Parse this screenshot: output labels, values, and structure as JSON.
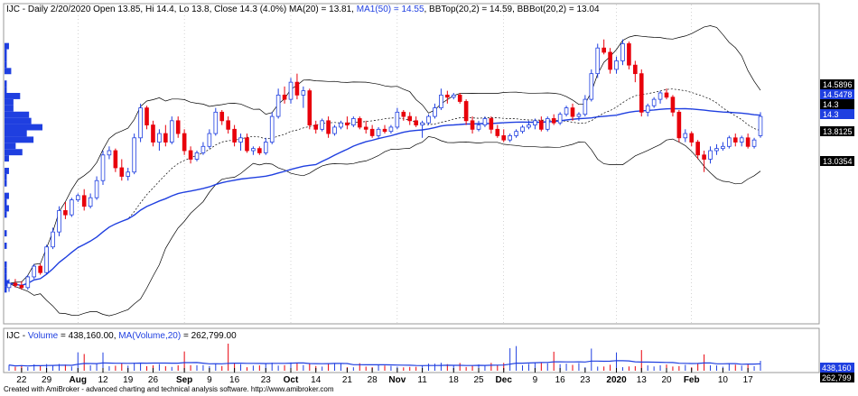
{
  "chart_data": {
    "type": "candlestick",
    "symbol": "IJC",
    "header": {
      "prefix": "IJC - Daily 2/20/2020 Open 13.85, Hi 14.4, Lo 13.8, Close 14.3 (4.0%) MA(20) = 13.81, ",
      "ma50": "MA1(50) = 14.55",
      "bb": ", BBTop(20,2) = 14.59, BBBot(20,2) = 13.04"
    },
    "last_bar": {
      "date": "2/20/2020",
      "open": 13.85,
      "high": 14.4,
      "low": 13.8,
      "close": 14.3,
      "change_pct": 4.0
    },
    "indicators": {
      "ma20": 13.81,
      "ma50": 14.55,
      "bb_top": 14.59,
      "bb_bot": 13.04
    },
    "y_axis_labels": [
      {
        "value": 14.5896,
        "text": "14.5896",
        "bg": "#000000",
        "color": "#ffffff"
      },
      {
        "value": 14.5478,
        "text": "14.5478",
        "bg": "#1f3fe0",
        "color": "#ffffff"
      },
      {
        "value": 14.3,
        "text": "14.3",
        "bg": "#000000",
        "color": "#ffffff"
      },
      {
        "value": 14.3,
        "text": "14.3",
        "bg": "#1f3fe0",
        "color": "#ffffff"
      },
      {
        "value": 13.8125,
        "text": "13.8125",
        "bg": "#000000",
        "color": "#ffffff"
      },
      {
        "value": 13.0354,
        "text": "13.0354",
        "bg": "#000000",
        "color": "#ffffff"
      }
    ],
    "x_ticks": [
      {
        "label": "22",
        "bold": false
      },
      {
        "label": "29",
        "bold": false
      },
      {
        "label": "Aug",
        "bold": true
      },
      {
        "label": "12",
        "bold": false
      },
      {
        "label": "19",
        "bold": false
      },
      {
        "label": "26",
        "bold": false
      },
      {
        "label": "Sep",
        "bold": true
      },
      {
        "label": "9",
        "bold": false
      },
      {
        "label": "16",
        "bold": false
      },
      {
        "label": "23",
        "bold": false
      },
      {
        "label": "Oct",
        "bold": true
      },
      {
        "label": "14",
        "bold": false
      },
      {
        "label": "21",
        "bold": false
      },
      {
        "label": "28",
        "bold": false
      },
      {
        "label": "Nov",
        "bold": true
      },
      {
        "label": "11",
        "bold": false
      },
      {
        "label": "18",
        "bold": false
      },
      {
        "label": "25",
        "bold": false
      },
      {
        "label": "Dec",
        "bold": true
      },
      {
        "label": "9",
        "bold": false
      },
      {
        "label": "16",
        "bold": false
      },
      {
        "label": "23",
        "bold": false
      },
      {
        "label": "2020",
        "bold": true
      },
      {
        "label": "13",
        "bold": false
      },
      {
        "label": "20",
        "bold": false
      },
      {
        "label": "Feb",
        "bold": true
      },
      {
        "label": "10",
        "bold": false
      },
      {
        "label": "17",
        "bold": false
      }
    ],
    "price_series": [
      {
        "o": 10.3,
        "h": 10.5,
        "l": 10.2,
        "c": 10.4
      },
      {
        "o": 10.4,
        "h": 10.5,
        "l": 10.3,
        "c": 10.35
      },
      {
        "o": 10.35,
        "h": 10.45,
        "l": 10.25,
        "c": 10.3
      },
      {
        "o": 10.3,
        "h": 10.6,
        "l": 10.25,
        "c": 10.55
      },
      {
        "o": 10.55,
        "h": 10.85,
        "l": 10.5,
        "c": 10.8
      },
      {
        "o": 10.8,
        "h": 10.85,
        "l": 10.6,
        "c": 10.65
      },
      {
        "o": 10.65,
        "h": 11.3,
        "l": 10.6,
        "c": 11.25
      },
      {
        "o": 11.25,
        "h": 11.7,
        "l": 11.2,
        "c": 11.6
      },
      {
        "o": 11.6,
        "h": 12.2,
        "l": 11.5,
        "c": 12.1
      },
      {
        "o": 12.1,
        "h": 12.3,
        "l": 11.9,
        "c": 12.0
      },
      {
        "o": 12.0,
        "h": 12.4,
        "l": 11.95,
        "c": 12.35
      },
      {
        "o": 12.35,
        "h": 12.5,
        "l": 12.3,
        "c": 12.45
      },
      {
        "o": 12.45,
        "h": 12.6,
        "l": 12.1,
        "c": 12.2
      },
      {
        "o": 12.2,
        "h": 12.5,
        "l": 12.15,
        "c": 12.4
      },
      {
        "o": 12.4,
        "h": 12.9,
        "l": 12.35,
        "c": 12.8
      },
      {
        "o": 12.8,
        "h": 13.5,
        "l": 12.7,
        "c": 13.4
      },
      {
        "o": 13.4,
        "h": 13.6,
        "l": 13.3,
        "c": 13.5
      },
      {
        "o": 13.5,
        "h": 13.55,
        "l": 13.0,
        "c": 13.1
      },
      {
        "o": 13.1,
        "h": 13.3,
        "l": 12.8,
        "c": 12.9
      },
      {
        "o": 12.9,
        "h": 13.1,
        "l": 12.8,
        "c": 13.0
      },
      {
        "o": 13.0,
        "h": 13.9,
        "l": 12.95,
        "c": 13.8
      },
      {
        "o": 13.8,
        "h": 14.6,
        "l": 13.7,
        "c": 14.5
      },
      {
        "o": 14.5,
        "h": 14.55,
        "l": 14.0,
        "c": 14.1
      },
      {
        "o": 14.1,
        "h": 14.2,
        "l": 13.6,
        "c": 13.7
      },
      {
        "o": 13.7,
        "h": 14.0,
        "l": 13.5,
        "c": 13.9
      },
      {
        "o": 13.9,
        "h": 14.1,
        "l": 13.6,
        "c": 13.7
      },
      {
        "o": 13.7,
        "h": 14.3,
        "l": 13.65,
        "c": 14.2
      },
      {
        "o": 14.2,
        "h": 14.3,
        "l": 13.8,
        "c": 13.9
      },
      {
        "o": 13.9,
        "h": 14.0,
        "l": 13.4,
        "c": 13.5
      },
      {
        "o": 13.5,
        "h": 13.6,
        "l": 13.2,
        "c": 13.3
      },
      {
        "o": 13.3,
        "h": 13.5,
        "l": 13.25,
        "c": 13.45
      },
      {
        "o": 13.45,
        "h": 13.7,
        "l": 13.4,
        "c": 13.6
      },
      {
        "o": 13.6,
        "h": 14.0,
        "l": 13.55,
        "c": 13.9
      },
      {
        "o": 13.9,
        "h": 14.5,
        "l": 13.85,
        "c": 14.4
      },
      {
        "o": 14.4,
        "h": 14.45,
        "l": 14.1,
        "c": 14.2
      },
      {
        "o": 14.2,
        "h": 14.3,
        "l": 13.9,
        "c": 14.0
      },
      {
        "o": 14.0,
        "h": 14.1,
        "l": 13.6,
        "c": 13.7
      },
      {
        "o": 13.7,
        "h": 13.9,
        "l": 13.5,
        "c": 13.8
      },
      {
        "o": 13.8,
        "h": 13.9,
        "l": 13.45,
        "c": 13.5
      },
      {
        "o": 13.5,
        "h": 13.6,
        "l": 13.4,
        "c": 13.55
      },
      {
        "o": 13.55,
        "h": 13.6,
        "l": 13.4,
        "c": 13.45
      },
      {
        "o": 13.45,
        "h": 13.8,
        "l": 13.4,
        "c": 13.7
      },
      {
        "o": 13.7,
        "h": 14.4,
        "l": 13.65,
        "c": 14.3
      },
      {
        "o": 14.3,
        "h": 14.95,
        "l": 14.25,
        "c": 14.8
      },
      {
        "o": 14.8,
        "h": 15.0,
        "l": 14.6,
        "c": 14.7
      },
      {
        "o": 14.7,
        "h": 15.2,
        "l": 14.6,
        "c": 15.1
      },
      {
        "o": 15.1,
        "h": 15.3,
        "l": 14.7,
        "c": 14.8
      },
      {
        "o": 14.8,
        "h": 15.0,
        "l": 14.5,
        "c": 14.9
      },
      {
        "o": 14.9,
        "h": 14.95,
        "l": 14.0,
        "c": 14.1
      },
      {
        "o": 14.1,
        "h": 14.2,
        "l": 13.9,
        "c": 14.0
      },
      {
        "o": 14.0,
        "h": 14.25,
        "l": 13.95,
        "c": 14.2
      },
      {
        "o": 14.2,
        "h": 14.3,
        "l": 13.8,
        "c": 13.9
      },
      {
        "o": 13.9,
        "h": 14.1,
        "l": 13.85,
        "c": 14.05
      },
      {
        "o": 14.05,
        "h": 14.2,
        "l": 14.0,
        "c": 14.15
      },
      {
        "o": 14.15,
        "h": 14.3,
        "l": 14.0,
        "c": 14.1
      },
      {
        "o": 14.1,
        "h": 14.3,
        "l": 14.05,
        "c": 14.25
      },
      {
        "o": 14.25,
        "h": 14.3,
        "l": 14.0,
        "c": 14.05
      },
      {
        "o": 14.05,
        "h": 14.2,
        "l": 13.9,
        "c": 14.0
      },
      {
        "o": 14.0,
        "h": 14.1,
        "l": 13.8,
        "c": 13.85
      },
      {
        "o": 13.85,
        "h": 14.05,
        "l": 13.8,
        "c": 14.0
      },
      {
        "o": 14.0,
        "h": 14.1,
        "l": 13.9,
        "c": 13.95
      },
      {
        "o": 13.95,
        "h": 14.1,
        "l": 13.9,
        "c": 14.05
      },
      {
        "o": 14.05,
        "h": 14.5,
        "l": 14.0,
        "c": 14.4
      },
      {
        "o": 14.4,
        "h": 14.45,
        "l": 14.2,
        "c": 14.3
      },
      {
        "o": 14.3,
        "h": 14.4,
        "l": 14.1,
        "c": 14.2
      },
      {
        "o": 14.2,
        "h": 14.3,
        "l": 14.05,
        "c": 14.1
      },
      {
        "o": 14.1,
        "h": 14.2,
        "l": 13.8,
        "c": 14.15
      },
      {
        "o": 14.15,
        "h": 14.35,
        "l": 14.1,
        "c": 14.3
      },
      {
        "o": 14.3,
        "h": 14.6,
        "l": 14.25,
        "c": 14.5
      },
      {
        "o": 14.5,
        "h": 14.95,
        "l": 14.45,
        "c": 14.8
      },
      {
        "o": 14.8,
        "h": 14.9,
        "l": 14.6,
        "c": 14.75
      },
      {
        "o": 14.75,
        "h": 14.85,
        "l": 14.7,
        "c": 14.8
      },
      {
        "o": 14.8,
        "h": 14.85,
        "l": 14.6,
        "c": 14.65
      },
      {
        "o": 14.65,
        "h": 14.7,
        "l": 14.1,
        "c": 14.2
      },
      {
        "o": 14.2,
        "h": 14.3,
        "l": 13.9,
        "c": 14.0
      },
      {
        "o": 14.0,
        "h": 14.2,
        "l": 13.95,
        "c": 14.1
      },
      {
        "o": 14.1,
        "h": 14.3,
        "l": 14.05,
        "c": 14.25
      },
      {
        "o": 14.25,
        "h": 14.3,
        "l": 13.9,
        "c": 14.0
      },
      {
        "o": 14.0,
        "h": 14.1,
        "l": 13.8,
        "c": 13.85
      },
      {
        "o": 13.85,
        "h": 14.0,
        "l": 13.7,
        "c": 13.75
      },
      {
        "o": 13.75,
        "h": 13.9,
        "l": 13.7,
        "c": 13.85
      },
      {
        "o": 13.85,
        "h": 14.0,
        "l": 13.8,
        "c": 13.95
      },
      {
        "o": 13.95,
        "h": 14.1,
        "l": 13.9,
        "c": 14.05
      },
      {
        "o": 14.05,
        "h": 14.2,
        "l": 14.0,
        "c": 14.1
      },
      {
        "o": 14.1,
        "h": 14.25,
        "l": 14.0,
        "c": 14.2
      },
      {
        "o": 14.2,
        "h": 14.3,
        "l": 13.95,
        "c": 14.0
      },
      {
        "o": 14.0,
        "h": 14.3,
        "l": 13.95,
        "c": 14.25
      },
      {
        "o": 14.25,
        "h": 14.35,
        "l": 14.1,
        "c": 14.15
      },
      {
        "o": 14.15,
        "h": 14.4,
        "l": 14.1,
        "c": 14.35
      },
      {
        "o": 14.35,
        "h": 14.55,
        "l": 14.3,
        "c": 14.5
      },
      {
        "o": 14.5,
        "h": 14.6,
        "l": 14.2,
        "c": 14.3
      },
      {
        "o": 14.3,
        "h": 14.4,
        "l": 14.2,
        "c": 14.35
      },
      {
        "o": 14.35,
        "h": 14.8,
        "l": 14.3,
        "c": 14.7
      },
      {
        "o": 14.7,
        "h": 15.4,
        "l": 14.65,
        "c": 15.3
      },
      {
        "o": 15.3,
        "h": 16.0,
        "l": 15.2,
        "c": 15.9
      },
      {
        "o": 15.9,
        "h": 16.1,
        "l": 15.75,
        "c": 15.8
      },
      {
        "o": 15.8,
        "h": 15.9,
        "l": 15.3,
        "c": 15.4
      },
      {
        "o": 15.4,
        "h": 15.7,
        "l": 15.3,
        "c": 15.6
      },
      {
        "o": 15.6,
        "h": 16.1,
        "l": 15.5,
        "c": 16.0
      },
      {
        "o": 16.0,
        "h": 16.05,
        "l": 15.4,
        "c": 15.5
      },
      {
        "o": 15.5,
        "h": 15.6,
        "l": 15.1,
        "c": 15.3
      },
      {
        "o": 15.3,
        "h": 15.4,
        "l": 14.3,
        "c": 14.4
      },
      {
        "o": 14.4,
        "h": 14.6,
        "l": 14.3,
        "c": 14.55
      },
      {
        "o": 14.55,
        "h": 14.75,
        "l": 14.5,
        "c": 14.7
      },
      {
        "o": 14.7,
        "h": 14.9,
        "l": 14.6,
        "c": 14.85
      },
      {
        "o": 14.85,
        "h": 14.95,
        "l": 14.7,
        "c": 14.75
      },
      {
        "o": 14.75,
        "h": 14.8,
        "l": 14.3,
        "c": 14.4
      },
      {
        "o": 14.4,
        "h": 14.45,
        "l": 13.7,
        "c": 13.8
      },
      {
        "o": 13.8,
        "h": 14.0,
        "l": 13.7,
        "c": 13.9
      },
      {
        "o": 13.9,
        "h": 13.95,
        "l": 13.6,
        "c": 13.7
      },
      {
        "o": 13.7,
        "h": 13.75,
        "l": 13.3,
        "c": 13.4
      },
      {
        "o": 13.4,
        "h": 13.5,
        "l": 13.0,
        "c": 13.3
      },
      {
        "o": 13.3,
        "h": 13.6,
        "l": 13.2,
        "c": 13.5
      },
      {
        "o": 13.5,
        "h": 13.65,
        "l": 13.4,
        "c": 13.55
      },
      {
        "o": 13.55,
        "h": 13.7,
        "l": 13.5,
        "c": 13.6
      },
      {
        "o": 13.6,
        "h": 13.85,
        "l": 13.55,
        "c": 13.8
      },
      {
        "o": 13.8,
        "h": 13.9,
        "l": 13.6,
        "c": 13.7
      },
      {
        "o": 13.7,
        "h": 13.85,
        "l": 13.6,
        "c": 13.8
      },
      {
        "o": 13.8,
        "h": 13.9,
        "l": 13.55,
        "c": 13.6
      },
      {
        "o": 13.6,
        "h": 13.8,
        "l": 13.55,
        "c": 13.75
      },
      {
        "o": 13.85,
        "h": 14.4,
        "l": 13.8,
        "c": 14.3
      }
    ],
    "volume": {
      "header": {
        "prefix": "IJC - ",
        "volume_label": "Volume",
        "volume_value": " = 438,160.00, ",
        "ma_label": "MA(Volume,20)",
        "ma_value": " = 262,799.00"
      },
      "last_volume": 438160,
      "ma20_last": 262799,
      "y_axis_labels": [
        {
          "value": 438160,
          "text": "438,160",
          "bg": "#1f3fe0",
          "color": "#ffffff"
        },
        {
          "value": 262799,
          "text": "262,799",
          "bg": "#000000",
          "color": "#ffffff"
        }
      ]
    },
    "footer": "Created with AmiBroker - advanced charting and technical analysis software. http://www.amibroker.com",
    "colors": {
      "up": "#1f3fe0",
      "down": "#e8000b",
      "ma50": "#1f3fe0",
      "bands": "#000000",
      "ma20": "#000000",
      "volume_profile": "#1f3fe0",
      "grid": "#aaaaaa"
    }
  }
}
